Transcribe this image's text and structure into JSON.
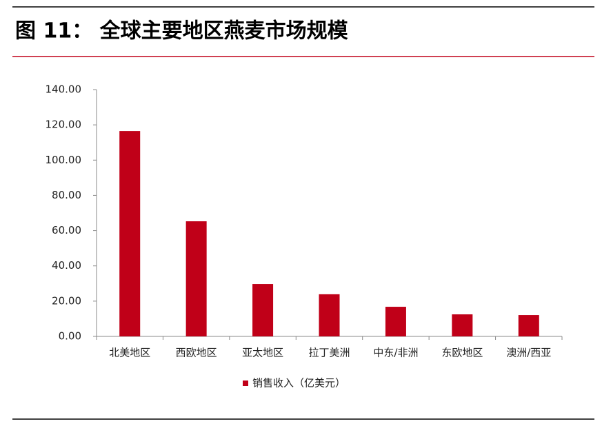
{
  "chart_data": {
    "type": "bar",
    "title": "图 11： 全球主要地区燕麦市场规模",
    "categories": [
      "北美地区",
      "西欧地区",
      "亚太地区",
      "拉丁美洲",
      "中东/非洲",
      "东欧地区",
      "澳洲/西亚"
    ],
    "series": [
      {
        "name": "销售收入（亿美元）",
        "color": "#c00018",
        "values": [
          116.5,
          65.3,
          29.7,
          23.9,
          16.8,
          12.5,
          12.1
        ]
      }
    ],
    "ylim": [
      0,
      140
    ],
    "yticks": [
      {
        "value": 0,
        "label": "0.00"
      },
      {
        "value": 20,
        "label": "20.00"
      },
      {
        "value": 40,
        "label": "40.00"
      },
      {
        "value": 60,
        "label": "60.00"
      },
      {
        "value": 80,
        "label": "80.00"
      },
      {
        "value": 100,
        "label": "100.00"
      },
      {
        "value": 120,
        "label": "120.00"
      },
      {
        "value": 140,
        "label": "140.00"
      }
    ],
    "grid": false,
    "legend": "bottom"
  }
}
